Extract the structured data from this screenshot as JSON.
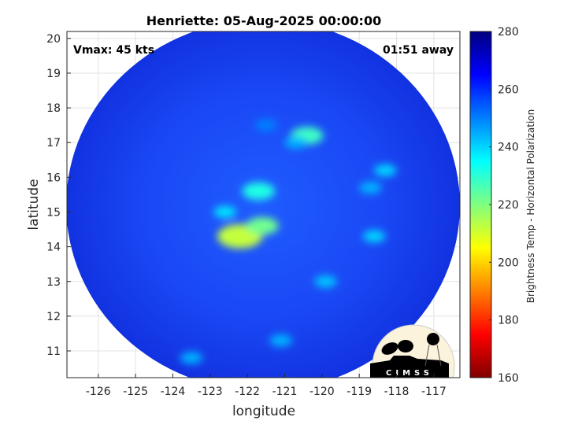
{
  "chart_data": {
    "type": "heatmap",
    "title": "Henriette: 05-Aug-2025 00:00:00",
    "xlabel": "longitude",
    "ylabel": "latitude",
    "xlim": [
      -126.84,
      -116.3
    ],
    "ylim": [
      10.23,
      20.2
    ],
    "xticks": [
      -126,
      -125,
      -124,
      -123,
      -122,
      -121,
      -120,
      -119,
      -118,
      -117
    ],
    "yticks": [
      11,
      12,
      13,
      14,
      15,
      16,
      17,
      18,
      19,
      20
    ],
    "grid": true,
    "annotations": {
      "vmax": "Vmax: 45 kts",
      "time_away": "01:51 away"
    },
    "colorbar": {
      "label": "Brightness Temp - Horizontal Polarization",
      "range": [
        160,
        280
      ],
      "ticks": [
        160,
        180,
        200,
        220,
        240,
        260,
        280
      ],
      "colormap": "jet"
    },
    "swath": {
      "center_lon": -121.8,
      "center_lat": 15.1,
      "background_temp": 262
    },
    "features": [
      {
        "lon": -122.2,
        "lat": 14.3,
        "temp": 212
      },
      {
        "lon": -121.6,
        "lat": 14.6,
        "temp": 222
      },
      {
        "lon": -121.7,
        "lat": 15.6,
        "temp": 232
      },
      {
        "lon": -122.6,
        "lat": 15.0,
        "temp": 238
      },
      {
        "lon": -120.4,
        "lat": 17.2,
        "temp": 228
      },
      {
        "lon": -120.7,
        "lat": 17.0,
        "temp": 244
      },
      {
        "lon": -118.3,
        "lat": 16.2,
        "temp": 240
      },
      {
        "lon": -118.7,
        "lat": 15.7,
        "temp": 244
      },
      {
        "lon": -118.6,
        "lat": 14.3,
        "temp": 240
      },
      {
        "lon": -119.9,
        "lat": 13.0,
        "temp": 242
      },
      {
        "lon": -121.1,
        "lat": 11.3,
        "temp": 244
      },
      {
        "lon": -123.5,
        "lat": 10.8,
        "temp": 244
      },
      {
        "lon": -121.5,
        "lat": 17.5,
        "temp": 250
      }
    ]
  },
  "logo": {
    "text": "CIMSS"
  }
}
